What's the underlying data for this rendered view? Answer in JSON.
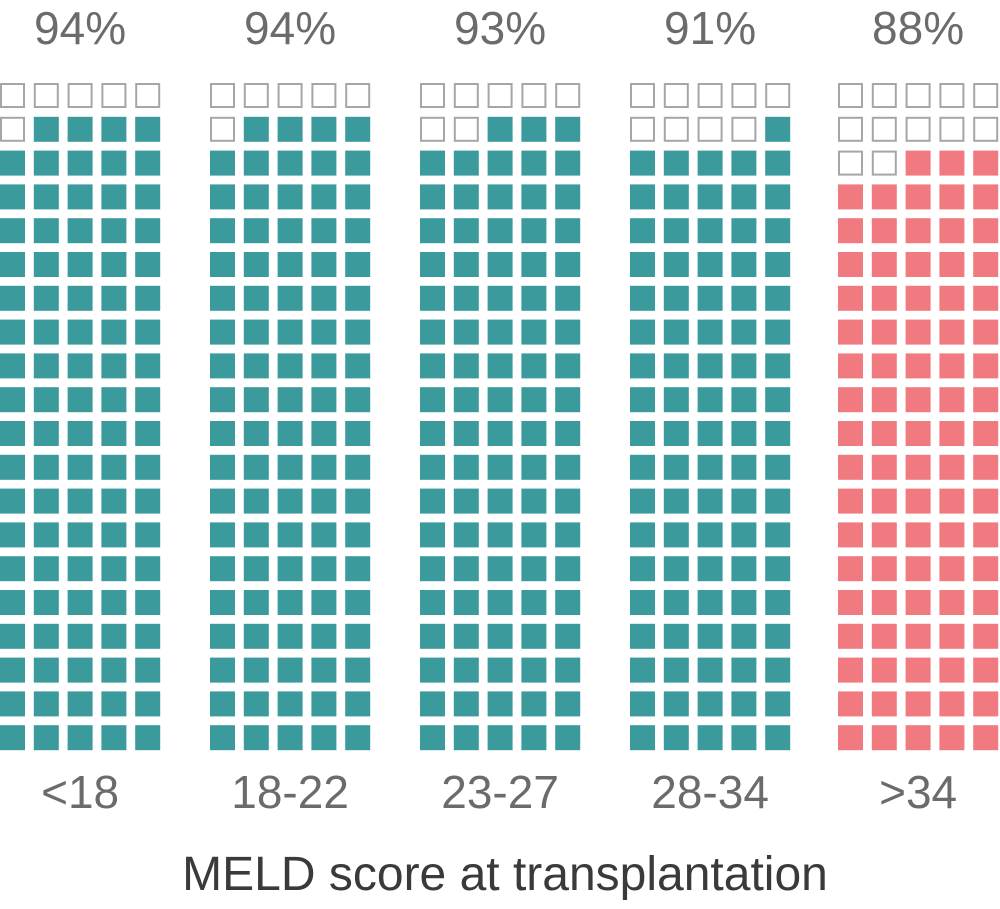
{
  "chart_data": {
    "type": "waffle",
    "xlabel": "MELD score at transplantation",
    "grid": {
      "rows": 20,
      "columns": 5,
      "total_cells": 100
    },
    "categories": [
      "<18",
      "18-22",
      "23-27",
      "28-34",
      ">34"
    ],
    "values": [
      94,
      94,
      93,
      91,
      88
    ],
    "value_labels": [
      "94%",
      "94%",
      "93%",
      "91%",
      "88%"
    ],
    "colors": [
      "#3a9a9c",
      "#3a9a9c",
      "#3a9a9c",
      "#3a9a9c",
      "#f07a80"
    ],
    "empty_cell_stroke": "#a6a6a6"
  }
}
